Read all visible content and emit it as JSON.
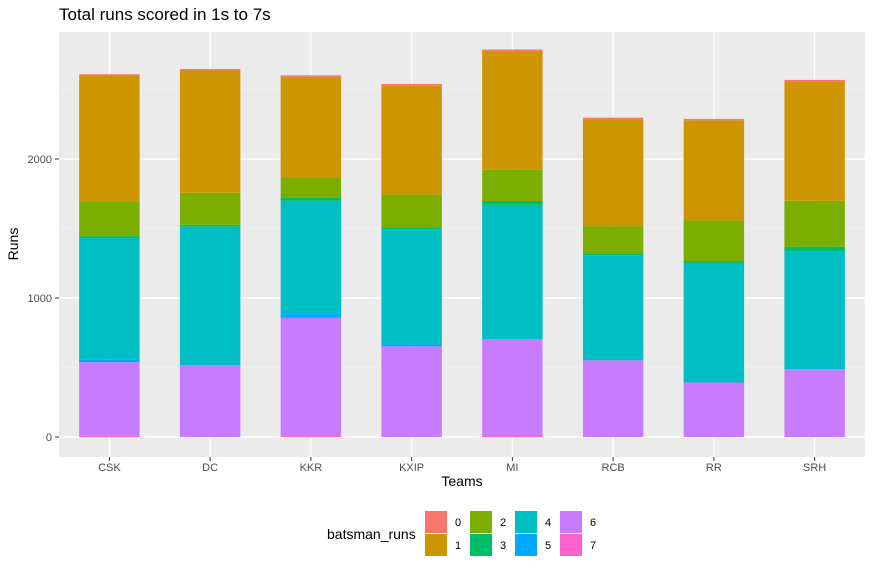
{
  "chart_data": {
    "type": "bar",
    "stacked": true,
    "title": "Total runs scored in 1s to 7s",
    "xlabel": "Teams",
    "ylabel": "Runs",
    "categories": [
      "CSK",
      "DC",
      "KKR",
      "KXIP",
      "MI",
      "RCB",
      "RR",
      "SRH"
    ],
    "y_ticks": [
      0,
      1000,
      2000
    ],
    "ylim": [
      -120,
      2920
    ],
    "grid": true,
    "legend": {
      "title": "batsman_runs",
      "position": "bottom"
    },
    "series": [
      {
        "name": "7",
        "color": "#FF61CC",
        "values": [
          8,
          0,
          7,
          0,
          14,
          0,
          0,
          0
        ]
      },
      {
        "name": "6",
        "color": "#C77CFF",
        "values": [
          530,
          518,
          850,
          652,
          690,
          552,
          392,
          488
        ]
      },
      {
        "name": "5",
        "color": "#00A9FF",
        "values": [
          21,
          0,
          28,
          14,
          0,
          0,
          0,
          0
        ]
      },
      {
        "name": "4",
        "color": "#00BFC4",
        "values": [
          872,
          995,
          814,
          828,
          966,
          755,
          860,
          846
        ]
      },
      {
        "name": "3",
        "color": "#00BE67",
        "values": [
          14,
          14,
          21,
          14,
          28,
          14,
          14,
          35
        ]
      },
      {
        "name": "2",
        "color": "#7CAE00",
        "values": [
          250,
          230,
          150,
          236,
          225,
          196,
          292,
          330
        ]
      },
      {
        "name": "1",
        "color": "#CD9600",
        "values": [
          905,
          880,
          722,
          786,
          855,
          770,
          720,
          860
        ]
      },
      {
        "name": "0",
        "color": "#F8766D",
        "values": [
          10,
          10,
          10,
          10,
          10,
          10,
          10,
          10
        ]
      }
    ],
    "legend_order": [
      "0",
      "1",
      "2",
      "3",
      "4",
      "5",
      "6",
      "7"
    ]
  }
}
